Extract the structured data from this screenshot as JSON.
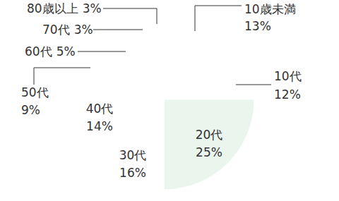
{
  "chart_data": {
    "type": "pie",
    "categories": [
      "10歳未満",
      "10代",
      "20代",
      "30代",
      "40代",
      "50代",
      "60代",
      "70代",
      "80歳以上"
    ],
    "values": [
      13,
      12,
      25,
      16,
      14,
      9,
      5,
      3,
      3
    ],
    "value_labels": [
      "13%",
      "12%",
      "25%",
      "16%",
      "14%",
      "9%",
      "5%",
      "3%",
      "3%"
    ],
    "colors": [
      "#eaf5ee",
      "#88c9a1",
      "#eaf5ee",
      "#c3e3cf",
      "#eaf5ee",
      "#88c9a1",
      "#eaf5ee",
      "#c3e3cf",
      "#88c9a1"
    ],
    "data_labels": true
  }
}
